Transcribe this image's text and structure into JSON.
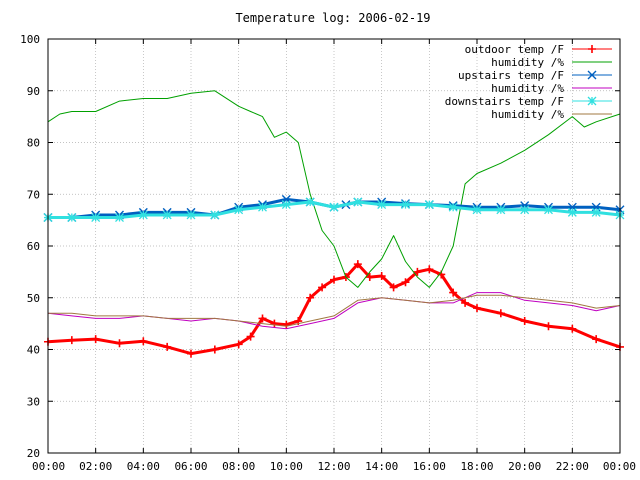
{
  "chart_data": {
    "type": "line",
    "title": "Temperature log: 2006-02-19",
    "xlabel": "",
    "ylabel": "",
    "xlim": [
      0,
      24
    ],
    "ylim": [
      20,
      100
    ],
    "grid": true,
    "legend_position": "top-right",
    "x_tick_labels": [
      "00:00",
      "02:00",
      "04:00",
      "06:00",
      "08:00",
      "10:00",
      "12:00",
      "14:00",
      "16:00",
      "18:00",
      "20:00",
      "22:00",
      "00:00"
    ],
    "y_tick_labels": [
      "20",
      "30",
      "40",
      "50",
      "60",
      "70",
      "80",
      "90",
      "100"
    ],
    "series": [
      {
        "name": "outdoor temp /F",
        "color": "#ff0000",
        "marker": "plus",
        "x": [
          0,
          1,
          2,
          3,
          4,
          5,
          6,
          7,
          8,
          8.5,
          9,
          9.5,
          10,
          10.5,
          11,
          11.5,
          12,
          12.5,
          13,
          13.5,
          14,
          14.5,
          15,
          15.5,
          16,
          16.5,
          17,
          17.5,
          18,
          19,
          20,
          21,
          22,
          23,
          24
        ],
        "y": [
          41.5,
          41.8,
          42.0,
          41.2,
          41.6,
          40.5,
          39.2,
          40.0,
          41.0,
          42.5,
          46.0,
          45.0,
          44.8,
          45.5,
          50.0,
          52.0,
          53.5,
          54.0,
          56.5,
          54.0,
          54.2,
          52.0,
          53.0,
          55.0,
          55.5,
          54.5,
          51.0,
          49.0,
          48.0,
          47.0,
          45.5,
          44.5,
          44.0,
          42.0,
          40.5
        ]
      },
      {
        "name": "humidity /%",
        "color": "#00a000",
        "marker": "none",
        "x": [
          0,
          0.5,
          1,
          2,
          3,
          4,
          5,
          6,
          7,
          8,
          8.5,
          9,
          9.5,
          10,
          10.5,
          11,
          11.5,
          12,
          12.5,
          13,
          13.5,
          14,
          14.5,
          15,
          15.5,
          16,
          16.5,
          17,
          17.5,
          18,
          19,
          20,
          21,
          22,
          22.5,
          23,
          24
        ],
        "y": [
          84.0,
          85.5,
          86.0,
          86.0,
          88.0,
          88.5,
          88.5,
          89.5,
          90.0,
          87.0,
          86.0,
          85.0,
          81.0,
          82.0,
          80.0,
          70.0,
          63.0,
          60.0,
          54.0,
          52.0,
          55.0,
          57.5,
          62.0,
          57.0,
          54.0,
          52.0,
          55.0,
          60.0,
          72.0,
          74.0,
          76.0,
          78.5,
          81.5,
          85.0,
          83.0,
          84.0,
          85.5
        ]
      },
      {
        "name": "upstairs temp /F",
        "color": "#0060c0",
        "marker": "cross",
        "x": [
          0,
          1,
          2,
          3,
          4,
          5,
          6,
          7,
          8,
          9,
          10,
          11,
          12,
          12.5,
          13,
          14,
          15,
          16,
          17,
          18,
          19,
          20,
          21,
          22,
          23,
          24
        ],
        "y": [
          65.5,
          65.5,
          66.0,
          66.0,
          66.5,
          66.5,
          66.5,
          66.0,
          67.5,
          68.0,
          69.0,
          68.5,
          67.5,
          68.0,
          68.5,
          68.5,
          68.2,
          68.0,
          67.8,
          67.5,
          67.5,
          67.8,
          67.5,
          67.5,
          67.5,
          67.0
        ]
      },
      {
        "name": "humidity /%",
        "color": "#c000c0",
        "marker": "none",
        "x": [
          0,
          1,
          2,
          3,
          4,
          5,
          6,
          7,
          8,
          9,
          10,
          11,
          12,
          13,
          14,
          15,
          16,
          17,
          18,
          19,
          20,
          21,
          22,
          23,
          24
        ],
        "y": [
          47.0,
          46.5,
          46.0,
          46.0,
          46.5,
          46.0,
          45.5,
          46.0,
          45.5,
          44.5,
          44.0,
          45.0,
          46.0,
          49.0,
          50.0,
          49.5,
          49.0,
          49.0,
          51.0,
          51.0,
          49.5,
          49.0,
          48.5,
          47.5,
          48.5
        ]
      },
      {
        "name": "downstairs temp /F",
        "color": "#30e0e0",
        "marker": "star",
        "x": [
          0,
          1,
          2,
          3,
          4,
          5,
          6,
          7,
          8,
          9,
          10,
          11,
          12,
          13,
          14,
          15,
          16,
          17,
          18,
          19,
          20,
          21,
          22,
          23,
          24
        ],
        "y": [
          65.5,
          65.5,
          65.5,
          65.5,
          66.0,
          66.0,
          66.0,
          66.0,
          67.0,
          67.5,
          68.0,
          68.5,
          67.5,
          68.5,
          68.0,
          68.0,
          68.0,
          67.5,
          67.0,
          67.0,
          67.0,
          67.0,
          66.5,
          66.5,
          66.0
        ]
      },
      {
        "name": "humidity /%",
        "color": "#a07840",
        "marker": "none",
        "x": [
          0,
          1,
          2,
          3,
          4,
          5,
          6,
          7,
          8,
          9,
          10,
          11,
          12,
          13,
          14,
          15,
          16,
          17,
          18,
          19,
          20,
          21,
          22,
          23,
          24
        ],
        "y": [
          47.0,
          47.0,
          46.5,
          46.5,
          46.5,
          46.0,
          46.0,
          46.0,
          45.5,
          45.0,
          44.5,
          45.5,
          46.5,
          49.5,
          50.0,
          49.5,
          49.0,
          49.5,
          50.5,
          50.5,
          50.0,
          49.5,
          49.0,
          48.0,
          48.5
        ]
      }
    ]
  }
}
